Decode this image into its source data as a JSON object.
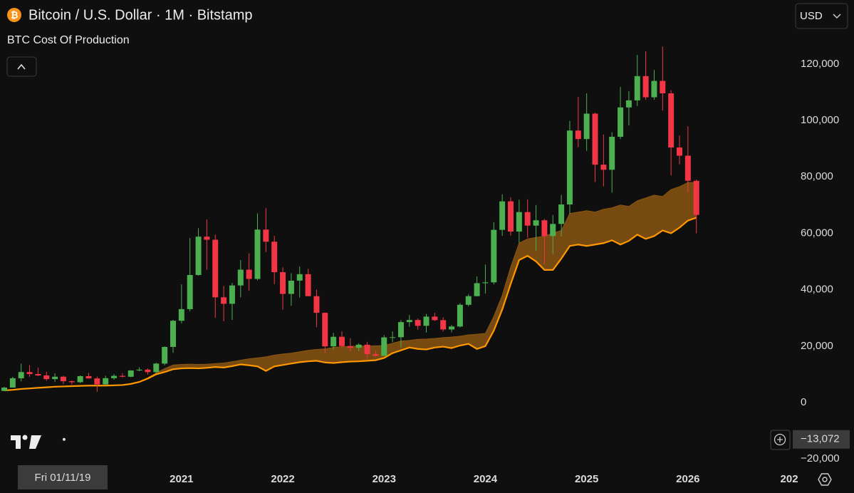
{
  "header": {
    "title": "Bitcoin / U.S. Dollar · 1M · Bitstamp",
    "indicator": "BTC Cost Of Production",
    "currency": "USD"
  },
  "chart_data": {
    "type": "candlestick",
    "categories": [
      null,
      null,
      null,
      null,
      null,
      null,
      null,
      null,
      null,
      null,
      null,
      null,
      null,
      null,
      null,
      null,
      null,
      null,
      null,
      null,
      null,
      "2021",
      null,
      null,
      null,
      null,
      null,
      null,
      null,
      null,
      null,
      null,
      null,
      "2022",
      null,
      null,
      null,
      null,
      null,
      null,
      null,
      null,
      null,
      null,
      null,
      "2023",
      null,
      null,
      null,
      null,
      null,
      null,
      null,
      null,
      null,
      null,
      null,
      "2024",
      null,
      null,
      null,
      null,
      null,
      null,
      null,
      null,
      null,
      null,
      null,
      "2025",
      null,
      null,
      null,
      null,
      null,
      null,
      null,
      null,
      null,
      null,
      null,
      "2026",
      null,
      null,
      null,
      null,
      null,
      null,
      null,
      null,
      null,
      null,
      null,
      "202"
    ],
    "ohlc": {
      "up_color": "#4caf50",
      "down_color": "#f23645",
      "open": [
        4100,
        5300,
        8600,
        10800,
        10100,
        9600,
        8300,
        9150,
        7550,
        7200,
        9350,
        8550,
        6420,
        8630,
        9450,
        9140,
        11350,
        11650,
        10780,
        13800,
        19700,
        28990,
        33100,
        45200,
        58800,
        57700,
        37300,
        35000,
        41500,
        47100,
        43800,
        61300,
        57000,
        46200,
        38500,
        43200,
        45500,
        37700,
        31800,
        19900,
        23300,
        20000,
        19400,
        20500,
        17150,
        16550,
        23100,
        23150,
        28500,
        29250,
        27200,
        30450,
        29200,
        25900,
        26950,
        34650,
        37700,
        42300,
        42600,
        61200,
        71300,
        60600,
        67500,
        62700,
        64600,
        59000,
        63300,
        70200,
        96400,
        93400,
        102400,
        84300,
        82500,
        94200,
        104600,
        107100,
        115700,
        108200,
        114000,
        109600,
        90400,
        87500,
        78600,
        null,
        null,
        null,
        null,
        null,
        null,
        null,
        null,
        null,
        null,
        null
      ],
      "high": [
        5600,
        9100,
        13800,
        13200,
        12300,
        10900,
        10400,
        9500,
        7800,
        9600,
        10500,
        9200,
        9500,
        10100,
        10400,
        11450,
        12500,
        12100,
        14100,
        19900,
        29300,
        41900,
        58300,
        61800,
        64900,
        59500,
        41300,
        42400,
        50500,
        52900,
        67000,
        69000,
        59100,
        47900,
        45800,
        48200,
        47400,
        40000,
        31900,
        24700,
        25200,
        22800,
        21000,
        21500,
        18400,
        23900,
        25200,
        29200,
        31000,
        29800,
        31400,
        31800,
        30200,
        27500,
        35200,
        38400,
        44700,
        48900,
        63900,
        73800,
        72800,
        71900,
        72000,
        70000,
        65100,
        66500,
        73600,
        99800,
        108300,
        109600,
        102700,
        95000,
        95800,
        111900,
        110400,
        123200,
        124500,
        117900,
        126200,
        110700,
        94600,
        97900,
        79000,
        null,
        null,
        null,
        null,
        null,
        null,
        null,
        null,
        null,
        null,
        null
      ],
      "low": [
        4050,
        5300,
        7500,
        9100,
        9300,
        7700,
        7300,
        6500,
        6400,
        6900,
        8500,
        3800,
        6150,
        8100,
        8900,
        8950,
        11100,
        9900,
        10450,
        13200,
        17600,
        28100,
        32300,
        45000,
        47000,
        30000,
        28800,
        29300,
        37300,
        39600,
        43300,
        53300,
        42000,
        32900,
        34300,
        37200,
        37700,
        26700,
        17600,
        18800,
        19600,
        18200,
        18200,
        15500,
        16300,
        16500,
        21400,
        19600,
        26900,
        25800,
        24800,
        28900,
        25200,
        24900,
        26600,
        34100,
        37600,
        38600,
        41900,
        59100,
        59200,
        56600,
        58400,
        53700,
        49000,
        52600,
        58900,
        66800,
        90500,
        89200,
        78200,
        76600,
        74400,
        93400,
        98200,
        105100,
        107300,
        107300,
        103500,
        80500,
        84400,
        74500,
        60000,
        null,
        null,
        null,
        null,
        null,
        null,
        null,
        null,
        null,
        null,
        null
      ],
      "close": [
        5300,
        8600,
        10800,
        10100,
        9600,
        8300,
        9150,
        7550,
        7200,
        9350,
        8550,
        6420,
        8630,
        9450,
        9140,
        11350,
        11650,
        10780,
        13800,
        19700,
        28990,
        33100,
        45200,
        58800,
        57700,
        37300,
        35000,
        41500,
        47100,
        43800,
        61300,
        57000,
        46200,
        38500,
        43200,
        45500,
        37700,
        31800,
        19900,
        23300,
        20000,
        19400,
        20500,
        17150,
        16550,
        23100,
        23150,
        28500,
        29250,
        27200,
        30450,
        29200,
        25900,
        26950,
        34650,
        37700,
        42300,
        42600,
        61200,
        71300,
        60600,
        67500,
        62700,
        64600,
        59000,
        63300,
        70200,
        96400,
        93400,
        102400,
        84300,
        82500,
        94200,
        104600,
        107100,
        115700,
        108200,
        114000,
        109600,
        90400,
        87500,
        78600,
        66500,
        null,
        null,
        null,
        null,
        null,
        null,
        null,
        null,
        null,
        null,
        null
      ]
    },
    "cost_band": {
      "line_color": "#ff9800",
      "fill_color": "#8a5512",
      "upper": [
        4300,
        4500,
        4800,
        5000,
        5200,
        5400,
        5600,
        5700,
        5800,
        5900,
        6000,
        6000,
        6000,
        6100,
        6200,
        6600,
        7400,
        8800,
        10500,
        12000,
        13300,
        13500,
        13600,
        13500,
        13600,
        13800,
        14000,
        14500,
        15000,
        15500,
        15800,
        16200,
        16800,
        17200,
        17500,
        18000,
        18500,
        18800,
        19000,
        19500,
        19800,
        19900,
        20000,
        20000,
        20100,
        20200,
        21000,
        21800,
        22000,
        22400,
        22500,
        22700,
        23000,
        23200,
        23500,
        24000,
        24200,
        24500,
        30500,
        38000,
        48000,
        56500,
        58000,
        58500,
        59000,
        60000,
        61000,
        67000,
        67500,
        68000,
        67500,
        68500,
        69000,
        70000,
        69500,
        71500,
        72500,
        73500,
        73000,
        75500,
        76500,
        78000,
        78000,
        null,
        null,
        null,
        null,
        null,
        null,
        null,
        null,
        null,
        null,
        null
      ],
      "lower": [
        4300,
        4500,
        4800,
        5000,
        5200,
        5400,
        5600,
        5700,
        5800,
        5900,
        6000,
        6000,
        6000,
        6100,
        6200,
        6600,
        7300,
        8500,
        10000,
        10800,
        11800,
        12100,
        12200,
        12100,
        12300,
        12600,
        12400,
        12900,
        13500,
        13200,
        12800,
        11200,
        12800,
        13300,
        13800,
        14300,
        14600,
        14800,
        14200,
        14000,
        14300,
        14500,
        14600,
        14800,
        15000,
        15800,
        17500,
        18500,
        19500,
        19000,
        18800,
        19500,
        19800,
        19300,
        20200,
        20800,
        19000,
        20000,
        25500,
        33000,
        42000,
        50500,
        52000,
        50000,
        47000,
        47000,
        51000,
        55500,
        56000,
        55500,
        56000,
        56500,
        57500,
        56000,
        57300,
        59500,
        58000,
        59000,
        61000,
        60000,
        62000,
        64500,
        65500,
        null,
        null,
        null,
        null,
        null,
        null,
        null,
        null,
        null,
        null,
        null
      ]
    },
    "ylim": [
      -21465,
      142677
    ],
    "yticks": [
      {
        "value": -20000,
        "label": "−20,000"
      },
      0,
      {
        "value": 20000,
        "label": "20,000"
      },
      {
        "value": 40000,
        "label": "40,000"
      },
      {
        "value": 60000,
        "label": "60,000"
      },
      {
        "value": 80000,
        "label": "80,000"
      },
      {
        "value": 100000,
        "label": "100,000"
      },
      {
        "value": 120000,
        "label": "120,000"
      }
    ],
    "crosshair": {
      "date_label": "Fri 01/11/19",
      "price": {
        "value": -13072,
        "label": "−13,072"
      }
    }
  }
}
